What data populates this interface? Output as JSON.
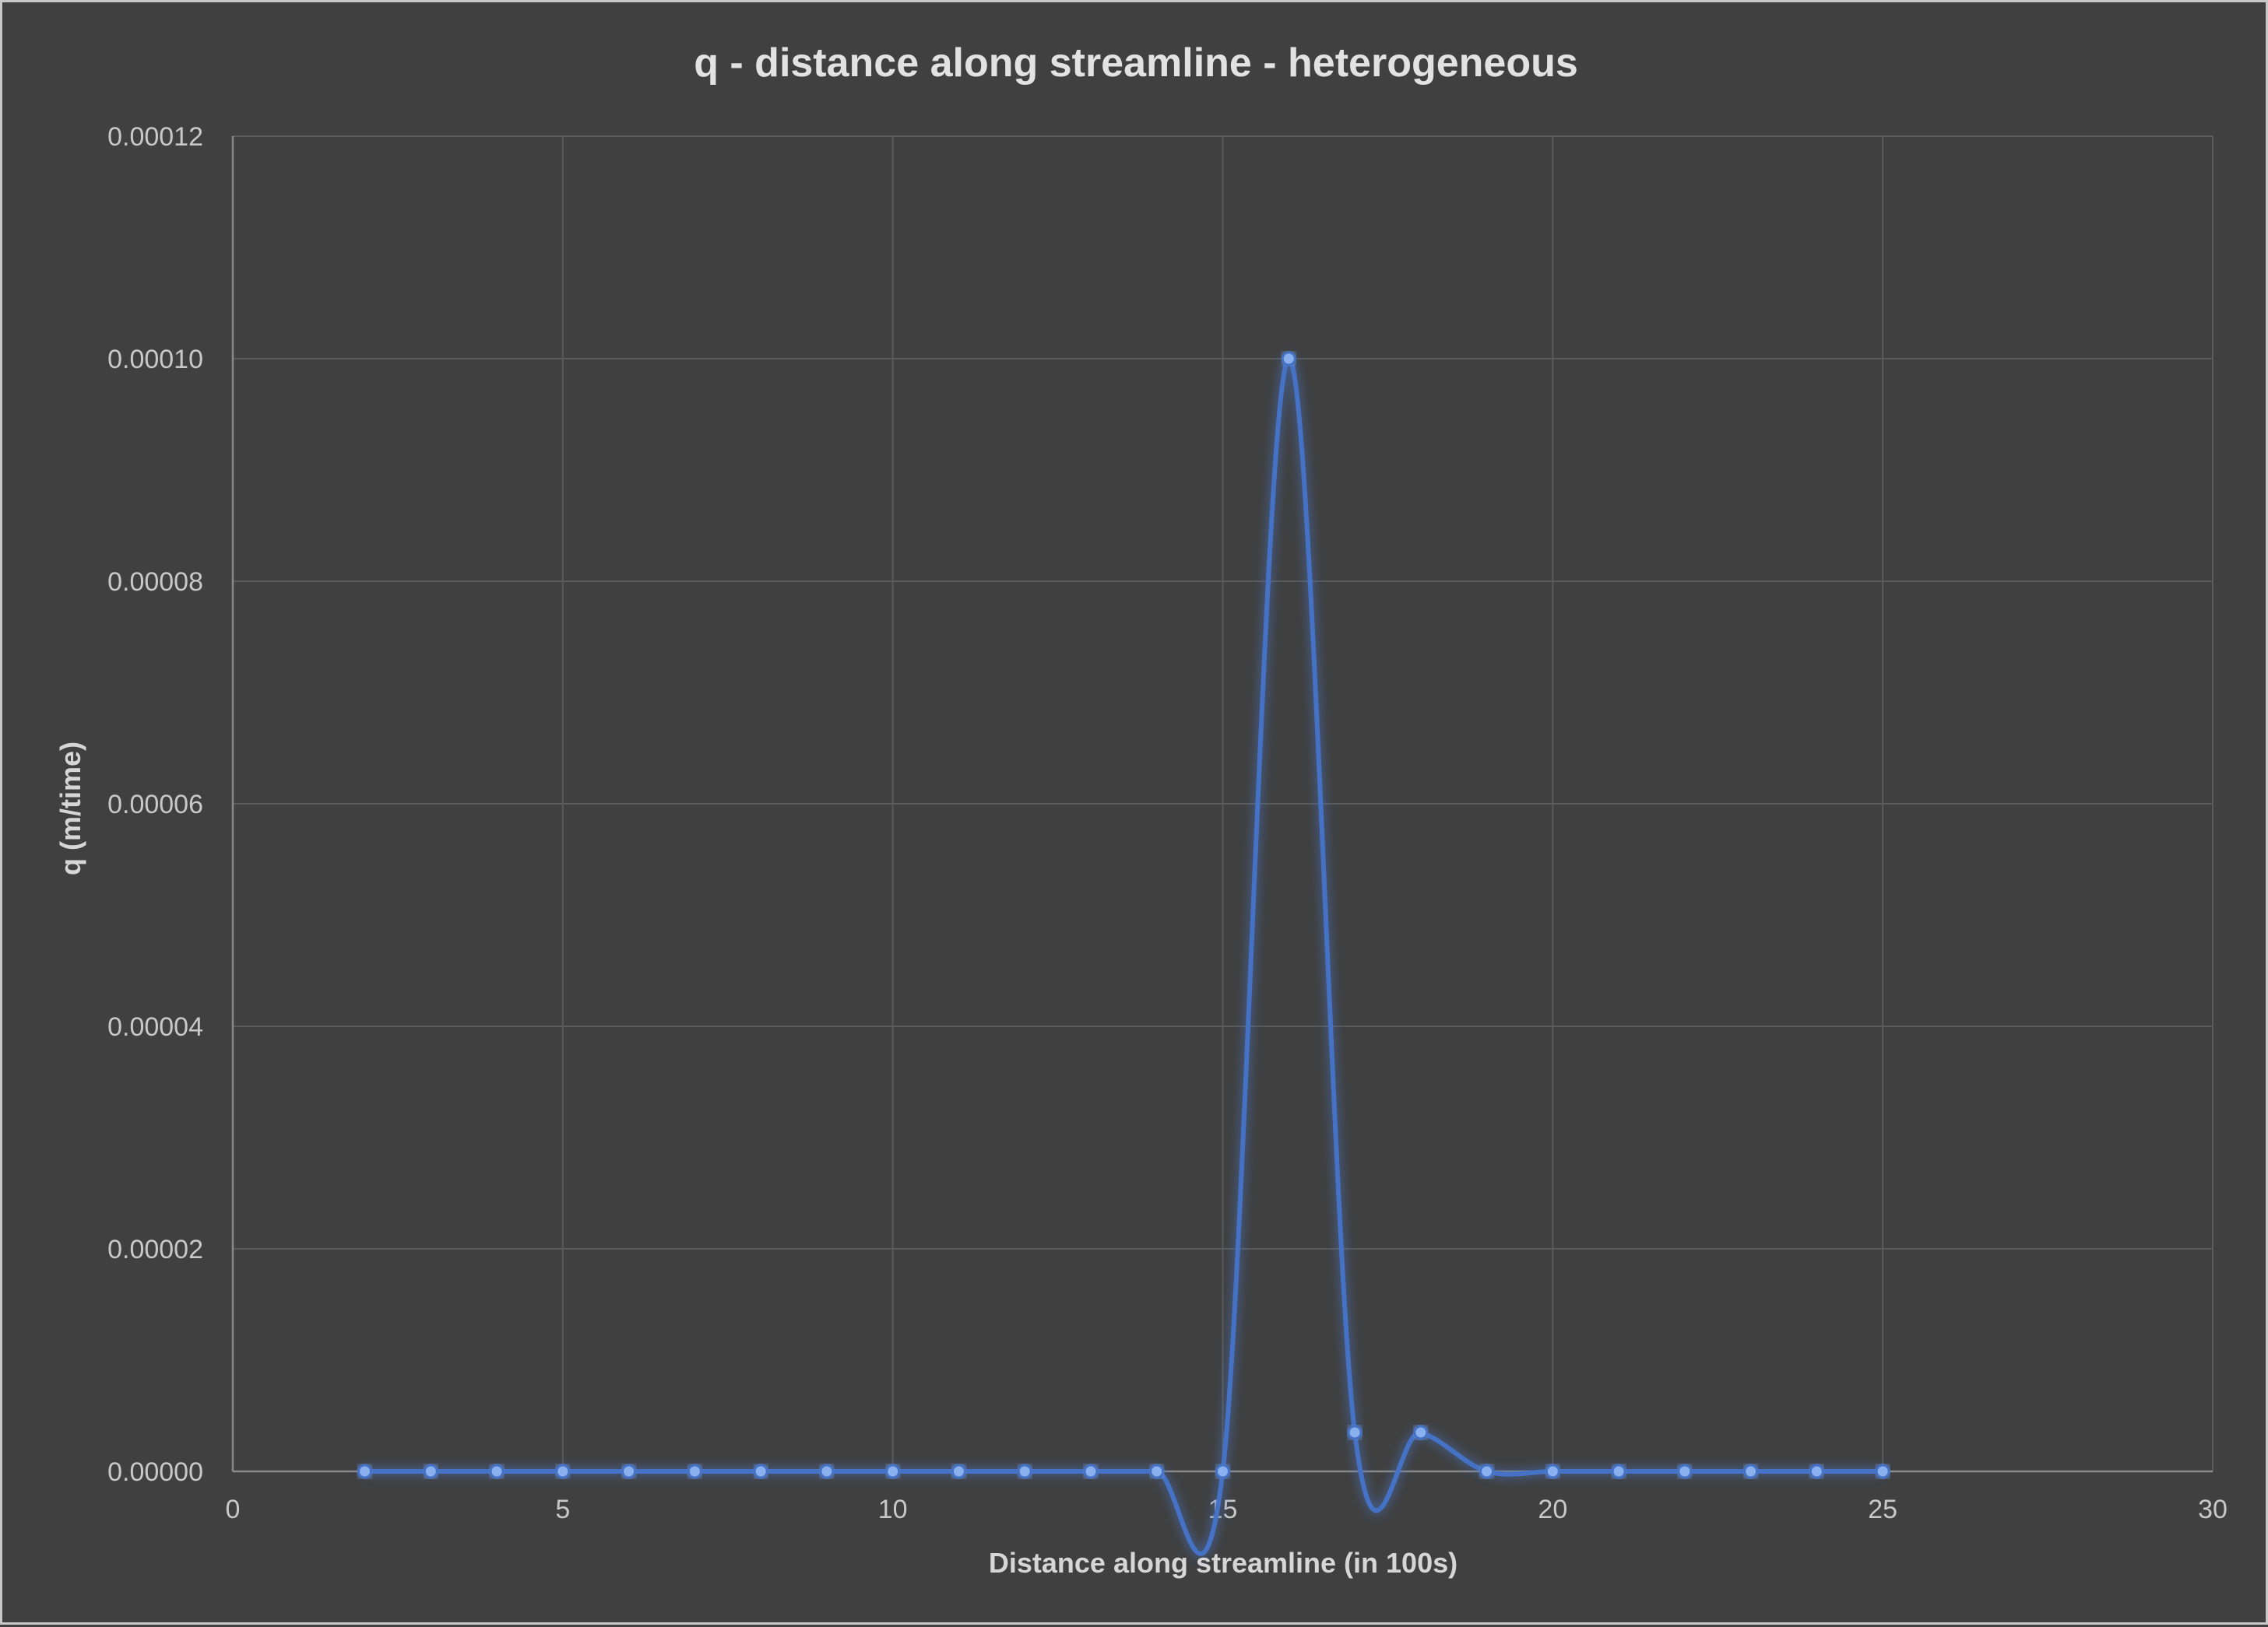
{
  "chart_data": {
    "type": "scatter",
    "title": "q - distance along streamline - heterogeneous",
    "xlabel": "Distance along streamline (in 100s)",
    "ylabel": "q (m/time)",
    "xlim": [
      0,
      30
    ],
    "ylim": [
      0,
      0.00012
    ],
    "x_ticks": [
      "0",
      "5",
      "10",
      "15",
      "20",
      "25",
      "30"
    ],
    "x_tick_values": [
      0,
      5,
      10,
      15,
      20,
      25,
      30
    ],
    "y_ticks": [
      "0.00000",
      "0.00002",
      "0.00004",
      "0.00006",
      "0.00008",
      "0.00010",
      "0.00012"
    ],
    "y_tick_values": [
      0,
      2e-05,
      4e-05,
      6e-05,
      8e-05,
      0.0001,
      0.00012
    ],
    "grid": true,
    "line_style": "smooth",
    "markers": true,
    "series": [
      {
        "color": "#4472c4",
        "x": [
          2,
          3,
          4,
          5,
          6,
          7,
          8,
          9,
          10,
          11,
          12,
          13,
          14,
          15,
          16,
          17,
          18,
          19,
          20,
          21,
          22,
          23,
          24,
          25
        ],
        "y": [
          0,
          0,
          0,
          0,
          0,
          0,
          0,
          0,
          0,
          0,
          0,
          0,
          0,
          0,
          0.0001,
          3.5e-06,
          3.5e-06,
          0,
          0,
          0,
          0,
          0,
          0,
          0
        ]
      }
    ]
  }
}
